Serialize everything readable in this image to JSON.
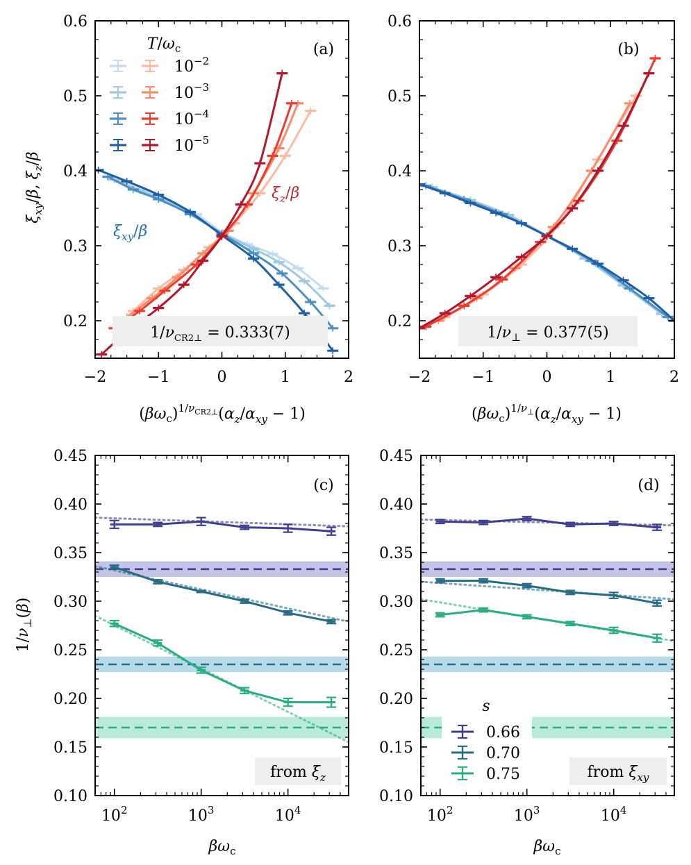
{
  "chart_data": [
    {
      "panel": "(a)",
      "type": "line",
      "xlabel": "(βω_c)^{1/ν_CR2⊥}(α_z/α_xy − 1)",
      "ylabel": "ξ_xy/β,  ξ_z/β",
      "xlim": [
        -2,
        2
      ],
      "ylim": [
        0.15,
        0.6
      ],
      "xticks": [
        "−2",
        "−1",
        "0",
        "1",
        "2"
      ],
      "yticks": [
        "0.2",
        "0.3",
        "0.4",
        "0.5",
        "0.6"
      ],
      "legend_title": "T/ω_c",
      "legend_entries": [
        "10^{−2}",
        "10^{−3}",
        "10^{−4}",
        "10^{−5}"
      ],
      "curve_labels": {
        "xy": "ξ_xy/β",
        "z": "ξ_z/β"
      },
      "annotation": "1/ν_CR2⊥ = 0.333(7)",
      "series": [
        {
          "kind": "xy",
          "T": "1e-2",
          "color": "#c6dbef",
          "x": [
            -1.6,
            -1.2,
            -0.8,
            -0.4,
            0,
            0.4,
            0.8,
            1.2,
            1.6
          ],
          "y": [
            0.386,
            0.372,
            0.358,
            0.342,
            0.318,
            0.302,
            0.289,
            0.27,
            0.243
          ]
        },
        {
          "kind": "xy",
          "T": "1e-3",
          "color": "#9ecae1",
          "x": [
            -1.7,
            -1.3,
            -0.9,
            -0.5,
            0,
            0.5,
            0.9,
            1.3,
            1.7
          ],
          "y": [
            0.388,
            0.374,
            0.36,
            0.343,
            0.317,
            0.296,
            0.278,
            0.253,
            0.22
          ]
        },
        {
          "kind": "xy",
          "T": "1e-4",
          "color": "#4a90c4",
          "x": [
            -1.8,
            -1.4,
            -1,
            -0.5,
            0,
            0.5,
            0.95,
            1.4,
            1.75
          ],
          "y": [
            0.392,
            0.375,
            0.362,
            0.342,
            0.316,
            0.29,
            0.263,
            0.225,
            0.19
          ]
        },
        {
          "kind": "xy",
          "T": "1e-5",
          "color": "#1f5fa5",
          "x": [
            -1.95,
            -1.5,
            -1,
            -0.5,
            0,
            0.5,
            0.9,
            1.3,
            1.75
          ],
          "y": [
            0.401,
            0.386,
            0.368,
            0.345,
            0.314,
            0.283,
            0.248,
            0.21,
            0.16
          ]
        },
        {
          "kind": "z",
          "T": "1e-2",
          "color": "#fcbba1",
          "x": [
            -1.4,
            -1,
            -0.6,
            -0.2,
            0.2,
            0.6,
            1,
            1.4
          ],
          "y": [
            0.213,
            0.243,
            0.268,
            0.298,
            0.33,
            0.37,
            0.42,
            0.48
          ]
        },
        {
          "kind": "z",
          "T": "1e-3",
          "color": "#fb8a6a",
          "x": [
            -1.5,
            -1.1,
            -0.7,
            -0.3,
            0.1,
            0.5,
            0.9,
            1.2
          ],
          "y": [
            0.205,
            0.23,
            0.258,
            0.29,
            0.32,
            0.37,
            0.43,
            0.49
          ]
        },
        {
          "kind": "z",
          "T": "1e-4",
          "color": "#ef3b2c",
          "x": [
            -1.7,
            -1.3,
            -0.9,
            -0.4,
            0,
            0.4,
            0.8,
            1.1
          ],
          "y": [
            0.19,
            0.213,
            0.24,
            0.275,
            0.312,
            0.355,
            0.42,
            0.49
          ]
        },
        {
          "kind": "z",
          "T": "1e-5",
          "color": "#b2182b",
          "x": [
            -1.9,
            -1.5,
            -1,
            -0.6,
            -0.3,
            0,
            0.3,
            0.6,
            0.95
          ],
          "y": [
            0.155,
            0.185,
            0.217,
            0.248,
            0.28,
            0.313,
            0.355,
            0.41,
            0.53
          ]
        }
      ]
    },
    {
      "panel": "(b)",
      "type": "line",
      "xlabel": "(βω_c)^{1/ν⊥}(α_z/α_xy − 1)",
      "xlim": [
        -2,
        2
      ],
      "ylim": [
        0.15,
        0.6
      ],
      "xticks": [
        "−2",
        "−1",
        "0",
        "1",
        "2"
      ],
      "yticks": [
        "0.2",
        "0.3",
        "0.4",
        "0.5",
        "0.6"
      ],
      "annotation": "1/ν⊥ = 0.377(5)",
      "series": [
        {
          "kind": "xy",
          "T": "1e-2",
          "color": "#c6dbef",
          "x": [
            -1.8,
            -1.2,
            -0.6,
            0,
            0.6,
            1.2,
            1.8
          ],
          "y": [
            0.378,
            0.36,
            0.34,
            0.314,
            0.284,
            0.248,
            0.21
          ]
        },
        {
          "kind": "xy",
          "T": "1e-3",
          "color": "#9ecae1",
          "x": [
            -1.8,
            -1.2,
            -0.6,
            0,
            0.6,
            1.2,
            1.8
          ],
          "y": [
            0.378,
            0.361,
            0.341,
            0.313,
            0.283,
            0.247,
            0.209
          ]
        },
        {
          "kind": "xy",
          "T": "1e-4",
          "color": "#4a90c4",
          "x": [
            -1.9,
            -1.3,
            -0.7,
            0,
            0.7,
            1.3,
            1.9
          ],
          "y": [
            0.38,
            0.362,
            0.342,
            0.313,
            0.28,
            0.243,
            0.205
          ]
        },
        {
          "kind": "xy",
          "T": "1e-5",
          "color": "#1f5fa5",
          "x": [
            -2,
            -1.6,
            -1.2,
            -0.8,
            -0.4,
            0,
            0.4,
            0.8,
            1.2,
            1.6,
            2
          ],
          "y": [
            0.382,
            0.37,
            0.357,
            0.344,
            0.33,
            0.313,
            0.296,
            0.276,
            0.254,
            0.23,
            0.2
          ]
        },
        {
          "kind": "z",
          "T": "1e-2",
          "color": "#fcbba1",
          "x": [
            -1.6,
            -1,
            -0.4,
            0.2,
            0.8,
            1.4
          ],
          "y": [
            0.205,
            0.235,
            0.275,
            0.33,
            0.415,
            0.5
          ]
        },
        {
          "kind": "z",
          "T": "1e-3",
          "color": "#fb8a6a",
          "x": [
            -1.7,
            -1.1,
            -0.5,
            0.1,
            0.7,
            1.3
          ],
          "y": [
            0.2,
            0.23,
            0.27,
            0.325,
            0.4,
            0.49
          ]
        },
        {
          "kind": "z",
          "T": "1e-4",
          "color": "#ef3b2c",
          "x": [
            -1.9,
            -1.3,
            -0.7,
            -0.1,
            0.5,
            1.1,
            1.7
          ],
          "y": [
            0.192,
            0.22,
            0.255,
            0.305,
            0.36,
            0.44,
            0.55
          ]
        },
        {
          "kind": "z",
          "T": "1e-5",
          "color": "#b2182b",
          "x": [
            -2,
            -1.6,
            -1.2,
            -0.8,
            -0.4,
            0,
            0.4,
            0.8,
            1.2,
            1.6
          ],
          "y": [
            0.19,
            0.21,
            0.233,
            0.258,
            0.285,
            0.313,
            0.35,
            0.4,
            0.46,
            0.53
          ]
        }
      ]
    },
    {
      "panel": "(c)",
      "type": "line",
      "xlabel": "βω_c",
      "ylabel": "1/ν⊥(β)",
      "xscale": "log",
      "xlim": [
        60,
        50000
      ],
      "ylim": [
        0.1,
        0.45
      ],
      "xticks": [
        "10^2",
        "10^3",
        "10^4"
      ],
      "yticks": [
        "0.10",
        "0.15",
        "0.20",
        "0.25",
        "0.30",
        "0.35",
        "0.40",
        "0.45"
      ],
      "annotation": "from ξ_z",
      "bands": [
        {
          "s": "0.66",
          "center": 0.333,
          "half_width": 0.008,
          "fill": "#b8b8e0"
        },
        {
          "s": "0.70",
          "center": 0.235,
          "half_width": 0.008,
          "fill": "#a9d4e3"
        },
        {
          "s": "0.75",
          "center": 0.17,
          "half_width": 0.011,
          "fill": "#aee8d3"
        }
      ],
      "series": [
        {
          "s": "0.66",
          "color": "#3f3f8f",
          "x": [
            100,
            316,
            1000,
            3162,
            10000,
            31623
          ],
          "y": [
            0.379,
            0.379,
            0.382,
            0.376,
            0.375,
            0.372
          ],
          "err": [
            0.004,
            0.002,
            0.004,
            0.002,
            0.004,
            0.004
          ],
          "fit": [
            0.386,
            0.377
          ]
        },
        {
          "s": "0.70",
          "color": "#256d85",
          "x": [
            100,
            316,
            1000,
            3162,
            10000,
            31623
          ],
          "y": [
            0.335,
            0.32,
            0.31,
            0.3,
            0.288,
            0.279
          ],
          "err": [
            0.002,
            0.002,
            0.001,
            0.002,
            0.002,
            0.002
          ],
          "fit": [
            0.336,
            0.279
          ]
        },
        {
          "s": "0.75",
          "color": "#28ae80",
          "x": [
            100,
            316,
            1000,
            3162,
            10000,
            31623
          ],
          "y": [
            0.277,
            0.257,
            0.229,
            0.208,
            0.196,
            0.196
          ],
          "err": [
            0.003,
            0.003,
            0.003,
            0.003,
            0.004,
            0.005
          ],
          "fit": [
            0.285,
            0.155
          ]
        }
      ]
    },
    {
      "panel": "(d)",
      "type": "line",
      "xlabel": "βω_c",
      "xscale": "log",
      "xlim": [
        60,
        50000
      ],
      "ylim": [
        0.1,
        0.45
      ],
      "xticks": [
        "10^2",
        "10^3",
        "10^4"
      ],
      "yticks": [
        "0.10",
        "0.15",
        "0.20",
        "0.25",
        "0.30",
        "0.35",
        "0.40",
        "0.45"
      ],
      "legend_title": "s",
      "legend_entries": [
        "0.66",
        "0.70",
        "0.75"
      ],
      "annotation": "from ξ_xy",
      "bands": [
        {
          "s": "0.66",
          "center": 0.333,
          "half_width": 0.008,
          "fill": "#b8b8e0"
        },
        {
          "s": "0.70",
          "center": 0.235,
          "half_width": 0.008,
          "fill": "#a9d4e3"
        },
        {
          "s": "0.75",
          "center": 0.17,
          "half_width": 0.011,
          "fill": "#aee8d3"
        }
      ],
      "series": [
        {
          "s": "0.66",
          "color": "#3f3f8f",
          "x": [
            100,
            316,
            1000,
            3162,
            10000,
            31623
          ],
          "y": [
            0.382,
            0.381,
            0.385,
            0.379,
            0.38,
            0.376
          ],
          "err": [
            0.002,
            0.002,
            0.002,
            0.002,
            0.002,
            0.003
          ],
          "fit": [
            0.384,
            0.378
          ]
        },
        {
          "s": "0.70",
          "color": "#256d85",
          "x": [
            100,
            316,
            1000,
            3162,
            10000,
            31623
          ],
          "y": [
            0.321,
            0.321,
            0.316,
            0.309,
            0.306,
            0.298
          ],
          "err": [
            0.002,
            0.002,
            0.002,
            0.002,
            0.003,
            0.003
          ],
          "fit": [
            0.32,
            0.302
          ]
        },
        {
          "s": "0.75",
          "color": "#28ae80",
          "x": [
            100,
            316,
            1000,
            3162,
            10000,
            31623
          ],
          "y": [
            0.286,
            0.291,
            0.284,
            0.277,
            0.27,
            0.262
          ],
          "err": [
            0.002,
            0.002,
            0.002,
            0.002,
            0.003,
            0.004
          ],
          "fit": [
            0.302,
            0.259
          ]
        }
      ]
    }
  ]
}
